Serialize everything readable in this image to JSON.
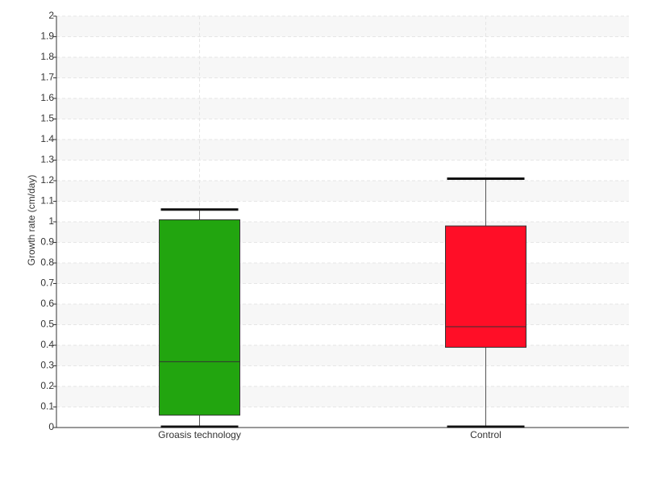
{
  "chart_data": {
    "type": "box",
    "y_label": "Growth rate (cm/day)",
    "categories": [
      "Groasis technology",
      "Control"
    ],
    "boxes": [
      {
        "min": 0,
        "q1": 0.06,
        "median": 0.32,
        "q3": 1.01,
        "max": 1.06,
        "color": "#22a50f"
      },
      {
        "min": 0,
        "q1": 0.39,
        "median": 0.49,
        "q3": 0.98,
        "max": 1.21,
        "color": "#ff0e27"
      }
    ],
    "ylim": [
      0,
      2
    ],
    "yticks": [
      0,
      0.1,
      0.2,
      0.3,
      0.4,
      0.5,
      0.6,
      0.7,
      0.8,
      0.9,
      1,
      1.1,
      1.2,
      1.3,
      1.4,
      1.5,
      1.6,
      1.7,
      1.8,
      1.9,
      2
    ],
    "grid": true
  }
}
